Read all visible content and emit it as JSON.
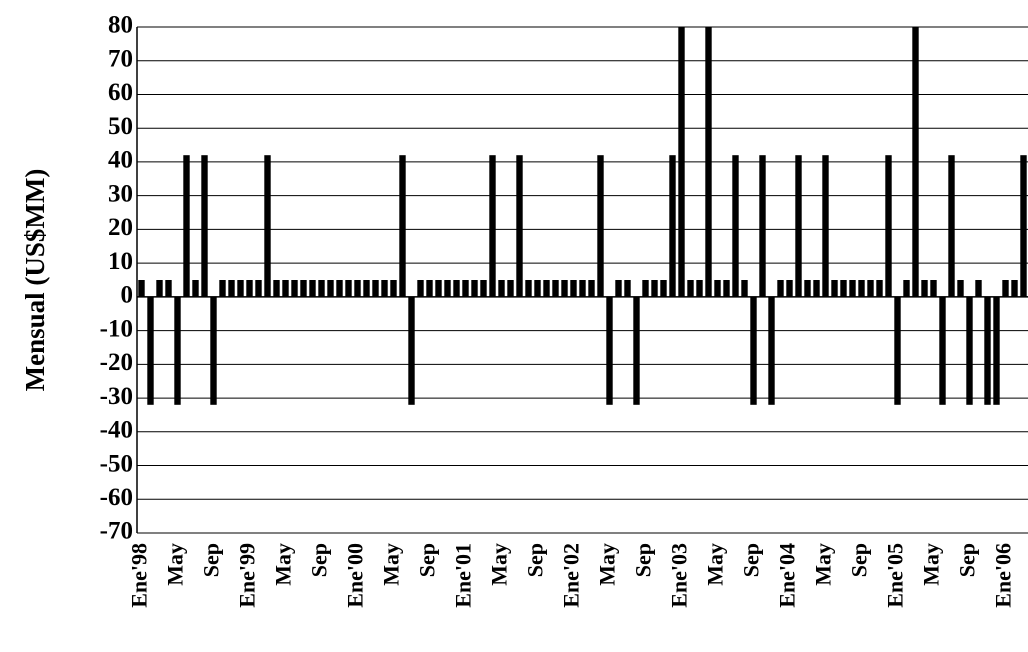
{
  "chart_data": {
    "type": "bar",
    "y_label": "Mensual (US$MM)",
    "categories": [
      "Ene'98",
      null,
      null,
      null,
      "May",
      null,
      null,
      null,
      "Sep",
      null,
      null,
      null,
      "Ene'99",
      null,
      null,
      null,
      "May",
      null,
      null,
      null,
      "Sep",
      null,
      null,
      null,
      "Ene'00",
      null,
      null,
      null,
      "May",
      null,
      null,
      null,
      "Sep",
      null,
      null,
      null,
      "Ene'01",
      null,
      null,
      null,
      "May",
      null,
      null,
      null,
      "Sep",
      null,
      null,
      null,
      "Ene'02",
      null,
      null,
      null,
      "May",
      null,
      null,
      null,
      "Sep",
      null,
      null,
      null,
      "Ene'03",
      null,
      null,
      null,
      "May",
      null,
      null,
      null,
      "Sep",
      null,
      null,
      null,
      "Ene'04",
      null,
      null,
      null,
      "May",
      null,
      null,
      null,
      "Sep",
      null,
      null,
      null,
      "Ene'05",
      null,
      null,
      null,
      "May",
      null,
      null,
      null,
      "Sep",
      null,
      null,
      null,
      "Ene'06",
      null,
      null
    ],
    "values": [
      5,
      -32,
      5,
      5,
      -32,
      42,
      5,
      42,
      -32,
      5,
      5,
      5,
      5,
      5,
      42,
      5,
      5,
      5,
      5,
      5,
      5,
      5,
      5,
      5,
      5,
      5,
      5,
      5,
      5,
      42,
      -32,
      5,
      5,
      5,
      5,
      5,
      5,
      5,
      5,
      42,
      5,
      5,
      42,
      5,
      5,
      5,
      5,
      5,
      5,
      5,
      5,
      42,
      -32,
      5,
      5,
      -32,
      5,
      5,
      5,
      42,
      80,
      5,
      5,
      80,
      5,
      5,
      42,
      5,
      -32,
      42,
      -32,
      5,
      5,
      42,
      5,
      5,
      42,
      5,
      5,
      5,
      5,
      5,
      5,
      42,
      -32,
      5,
      80,
      5,
      5,
      -32,
      42,
      5,
      -32,
      5,
      -32,
      -32,
      5,
      5,
      42
    ],
    "color": "#000000",
    "ylim": [
      -70,
      80
    ],
    "yticks": [
      -70,
      -60,
      -50,
      -40,
      -30,
      -20,
      -10,
      0,
      10,
      20,
      30,
      40,
      50,
      60,
      70,
      80
    ],
    "grid": true
  }
}
